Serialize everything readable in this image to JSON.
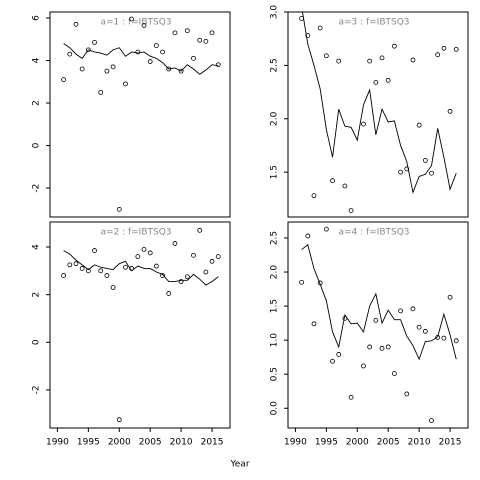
{
  "xlabel": "Year",
  "chart_data": [
    {
      "type": "scatter",
      "annotation": "a=1   :   f=IBTSQ3",
      "x": [
        1991,
        1992,
        1993,
        1994,
        1995,
        1996,
        1997,
        1998,
        1999,
        2000,
        2001,
        2002,
        2003,
        2004,
        2005,
        2006,
        2007,
        2008,
        2009,
        2010,
        2011,
        2012,
        2013,
        2014,
        2015,
        2016
      ],
      "series": [
        {
          "mode": "markers",
          "color": "#000000",
          "values": [
            3.1,
            4.3,
            5.7,
            3.6,
            4.5,
            4.85,
            2.5,
            3.5,
            3.7,
            -3.0,
            2.9,
            5.95,
            4.4,
            5.65,
            3.95,
            4.7,
            4.4,
            3.6,
            5.3,
            3.5,
            5.4,
            4.1,
            4.95,
            4.9,
            5.3,
            3.8
          ]
        },
        {
          "mode": "lines",
          "color": "#000000",
          "values": [
            4.8,
            4.6,
            4.3,
            4.1,
            4.5,
            4.4,
            4.35,
            4.25,
            4.5,
            4.6,
            4.2,
            4.4,
            4.35,
            4.4,
            4.2,
            4.1,
            3.9,
            3.6,
            3.65,
            3.5,
            3.8,
            3.6,
            3.35,
            3.55,
            3.8,
            3.75
          ]
        }
      ],
      "xlim": [
        1988.8,
        2017.9
      ],
      "ylim": [
        -3.36,
        6.28
      ],
      "yticks": [
        -2,
        0,
        2,
        4,
        6
      ]
    },
    {
      "type": "scatter",
      "annotation": "a=2   :   f=IBTSQ3",
      "x": [
        1991,
        1992,
        1993,
        1994,
        1995,
        1996,
        1997,
        1998,
        1999,
        2000,
        2001,
        2002,
        2003,
        2004,
        2005,
        2006,
        2007,
        2008,
        2009,
        2010,
        2011,
        2012,
        2013,
        2014,
        2015,
        2016
      ],
      "series": [
        {
          "mode": "markers",
          "color": "#000000",
          "values": [
            2.8,
            3.25,
            3.3,
            3.1,
            3.0,
            3.85,
            3.0,
            2.8,
            2.3,
            -3.25,
            3.15,
            3.1,
            3.6,
            3.9,
            3.75,
            3.2,
            2.8,
            2.05,
            4.15,
            2.55,
            2.75,
            3.65,
            4.7,
            2.95,
            3.4,
            3.6
          ]
        },
        {
          "mode": "lines",
          "color": "#000000",
          "values": [
            3.85,
            3.7,
            3.45,
            3.25,
            3.05,
            3.25,
            3.15,
            3.1,
            3.05,
            3.3,
            3.4,
            3.0,
            3.2,
            3.1,
            3.1,
            2.95,
            2.85,
            2.55,
            2.55,
            2.6,
            2.6,
            2.85,
            2.65,
            2.4,
            2.55,
            2.75
          ]
        }
      ],
      "xlim": [
        1988.8,
        2017.9
      ],
      "xticks": [
        1990,
        1995,
        2000,
        2005,
        2010,
        2015
      ],
      "ylim": [
        -3.6,
        5.05
      ],
      "yticks": [
        -2,
        0,
        2,
        4
      ]
    },
    {
      "type": "scatter",
      "annotation": "a=3   :   f=IBTSQ3",
      "x": [
        1991,
        1992,
        1993,
        1994,
        1995,
        1996,
        1997,
        1998,
        1999,
        2000,
        2001,
        2002,
        2003,
        2004,
        2005,
        2006,
        2007,
        2008,
        2009,
        2010,
        2011,
        2012,
        2013,
        2014,
        2015,
        2016
      ],
      "series": [
        {
          "mode": "markers",
          "color": "#000000",
          "values": [
            2.94,
            2.78,
            1.28,
            2.85,
            2.59,
            1.42,
            2.54,
            1.37,
            1.14,
            null,
            1.95,
            2.54,
            2.34,
            2.57,
            2.36,
            2.68,
            1.5,
            1.53,
            2.55,
            1.94,
            1.61,
            1.49,
            2.6,
            2.66,
            2.07,
            2.65
          ]
        },
        {
          "mode": "lines",
          "color": "#000000",
          "values": [
            3.05,
            2.7,
            2.5,
            2.28,
            1.9,
            1.64,
            2.09,
            1.93,
            1.92,
            1.8,
            2.13,
            2.27,
            1.85,
            2.09,
            1.97,
            1.98,
            1.75,
            1.6,
            1.31,
            1.46,
            1.48,
            1.56,
            1.91,
            1.64,
            1.34,
            1.49
          ]
        }
      ],
      "xlim": [
        1988.8,
        2017.9
      ],
      "ylim": [
        1.08,
        3.0
      ],
      "yticks": [
        1.5,
        {
          "value": 2,
          "label": "2.0"
        },
        2.5,
        {
          "value": 3,
          "label": "3.0"
        }
      ]
    },
    {
      "type": "scatter",
      "annotation": "a=4   :   f=IBTSQ3",
      "x": [
        1991,
        1992,
        1993,
        1994,
        1995,
        1996,
        1997,
        1998,
        1999,
        2000,
        2001,
        2002,
        2003,
        2004,
        2005,
        2006,
        2007,
        2008,
        2009,
        2010,
        2011,
        2012,
        2013,
        2014,
        2015,
        2016
      ],
      "series": [
        {
          "mode": "markers",
          "color": "#000000",
          "values": [
            1.85,
            2.53,
            1.24,
            1.84,
            2.63,
            0.69,
            0.79,
            1.32,
            0.16,
            null,
            0.62,
            0.9,
            1.29,
            0.88,
            0.9,
            0.51,
            1.43,
            0.21,
            1.46,
            1.19,
            1.13,
            -0.18,
            1.04,
            1.03,
            1.63,
            0.99
          ]
        },
        {
          "mode": "lines",
          "color": "#000000",
          "values": [
            2.33,
            2.4,
            2.05,
            1.82,
            1.58,
            1.12,
            0.9,
            1.37,
            1.24,
            1.25,
            1.12,
            1.5,
            1.68,
            1.25,
            1.44,
            1.3,
            1.3,
            1.06,
            0.92,
            0.72,
            0.98,
            0.99,
            1.05,
            1.38,
            1.08,
            0.72
          ]
        }
      ],
      "xlim": [
        1988.8,
        2017.9
      ],
      "xticks": [
        1990,
        1995,
        2000,
        2005,
        2010,
        2015
      ],
      "ylim": [
        -0.29,
        2.735
      ],
      "yticks": [
        {
          "value": 0,
          "label": "0.0"
        },
        0.5,
        {
          "value": 1,
          "label": "1.0"
        },
        1.5,
        {
          "value": 2,
          "label": "2.0"
        },
        2.5
      ]
    }
  ]
}
